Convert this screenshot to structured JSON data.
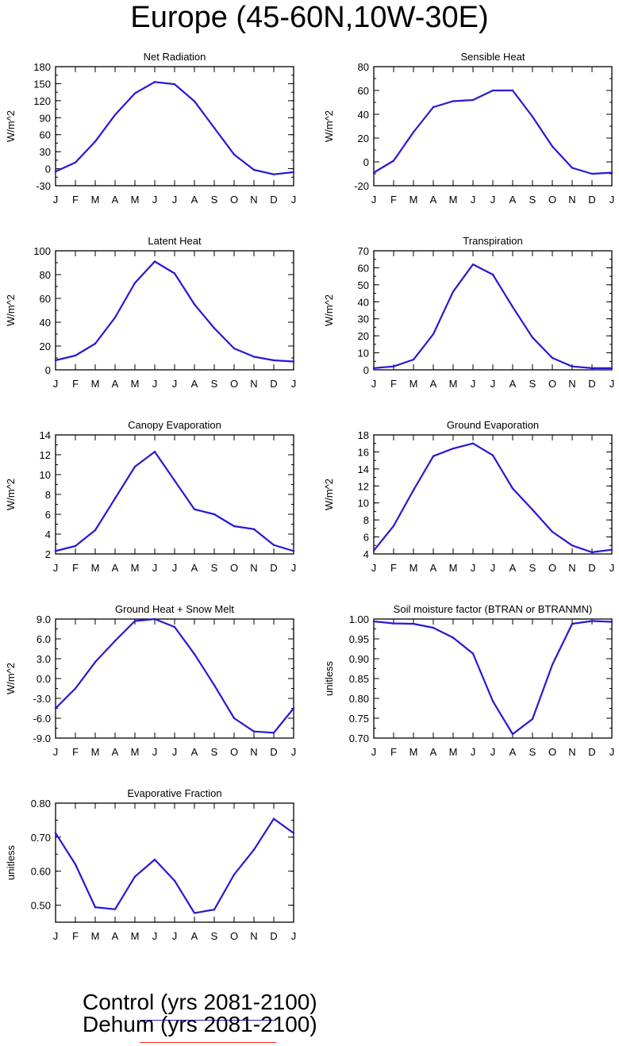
{
  "figure": {
    "title": "Europe (45-60N,10W-30E)",
    "colors": {
      "control": "#2a17d6",
      "dehum": "#ff2a1f",
      "axis": "#000000"
    }
  },
  "legend": {
    "control_label": "Control (yrs 2081-2100)",
    "dehum_label": "Dehum (yrs 2081-2100)"
  },
  "chart_data": [
    {
      "type": "line",
      "title": "Net Radiation",
      "ylabel": "W/m^2",
      "xlabel": "",
      "categories": [
        "J",
        "F",
        "M",
        "A",
        "M",
        "J",
        "J",
        "A",
        "S",
        "O",
        "N",
        "D",
        "J"
      ],
      "ylim": [
        -30,
        180
      ],
      "yticks": [
        -30,
        0,
        30,
        60,
        90,
        120,
        150,
        180
      ],
      "ytick_labels": [
        "-30",
        "0",
        "30",
        "60",
        "90",
        "120",
        "150",
        "180"
      ],
      "series": [
        {
          "name": "Control (yrs 2081-2100)",
          "values": [
            -5,
            11,
            48,
            95,
            133,
            153,
            149,
            119,
            72,
            25,
            -2,
            -10,
            -6
          ]
        }
      ]
    },
    {
      "type": "line",
      "title": "Sensible Heat",
      "ylabel": "W/m^2",
      "xlabel": "",
      "categories": [
        "J",
        "F",
        "M",
        "A",
        "M",
        "J",
        "J",
        "A",
        "S",
        "O",
        "N",
        "D",
        "J"
      ],
      "ylim": [
        -20,
        80
      ],
      "yticks": [
        -20,
        0,
        20,
        40,
        60,
        80
      ],
      "ytick_labels": [
        "-20",
        "0",
        "20",
        "40",
        "60",
        "80"
      ],
      "series": [
        {
          "name": "Control (yrs 2081-2100)",
          "values": [
            -9,
            1,
            25,
            46,
            51,
            52,
            60,
            60,
            38,
            13,
            -5,
            -10,
            -9
          ]
        }
      ]
    },
    {
      "type": "line",
      "title": "Latent Heat",
      "ylabel": "W/m^2",
      "xlabel": "",
      "categories": [
        "J",
        "F",
        "M",
        "A",
        "M",
        "J",
        "J",
        "A",
        "S",
        "O",
        "N",
        "D",
        "J"
      ],
      "ylim": [
        0,
        100
      ],
      "yticks": [
        0,
        20,
        40,
        60,
        80,
        100
      ],
      "ytick_labels": [
        "0",
        "20",
        "40",
        "60",
        "80",
        "100"
      ],
      "series": [
        {
          "name": "Control (yrs 2081-2100)",
          "values": [
            8,
            12,
            22,
            44,
            73,
            91,
            81,
            55,
            35,
            18,
            11,
            8,
            7
          ]
        }
      ]
    },
    {
      "type": "line",
      "title": "Transpiration",
      "ylabel": "W/m^2",
      "xlabel": "",
      "categories": [
        "J",
        "F",
        "M",
        "A",
        "M",
        "J",
        "J",
        "A",
        "S",
        "O",
        "N",
        "D",
        "J"
      ],
      "ylim": [
        0,
        70
      ],
      "yticks": [
        0,
        10,
        20,
        30,
        40,
        50,
        60,
        70
      ],
      "ytick_labels": [
        "0",
        "10",
        "20",
        "30",
        "40",
        "50",
        "60",
        "70"
      ],
      "series": [
        {
          "name": "Control (yrs 2081-2100)",
          "values": [
            1,
            2,
            6,
            21,
            46,
            62,
            56,
            37,
            19,
            7,
            2,
            1,
            1
          ]
        }
      ]
    },
    {
      "type": "line",
      "title": "Canopy Evaporation",
      "ylabel": "W/m^2",
      "xlabel": "",
      "categories": [
        "J",
        "F",
        "M",
        "A",
        "M",
        "J",
        "J",
        "A",
        "S",
        "O",
        "N",
        "D",
        "J"
      ],
      "ylim": [
        2,
        14
      ],
      "yticks": [
        2,
        4,
        6,
        8,
        10,
        12,
        14
      ],
      "ytick_labels": [
        "2",
        "4",
        "6",
        "8",
        "10",
        "12",
        "14"
      ],
      "series": [
        {
          "name": "Control (yrs 2081-2100)",
          "values": [
            2.3,
            2.8,
            4.4,
            7.6,
            10.8,
            12.3,
            9.4,
            6.5,
            6.0,
            4.8,
            4.5,
            2.9,
            2.3
          ]
        }
      ]
    },
    {
      "type": "line",
      "title": "Ground Evaporation",
      "ylabel": "W/m^2",
      "xlabel": "",
      "categories": [
        "J",
        "F",
        "M",
        "A",
        "M",
        "J",
        "J",
        "A",
        "S",
        "O",
        "N",
        "D",
        "J"
      ],
      "ylim": [
        4,
        18
      ],
      "yticks": [
        4,
        6,
        8,
        10,
        12,
        14,
        16,
        18
      ],
      "ytick_labels": [
        "4",
        "6",
        "8",
        "10",
        "12",
        "14",
        "16",
        "18"
      ],
      "series": [
        {
          "name": "Control (yrs 2081-2100)",
          "values": [
            4.4,
            7.3,
            11.5,
            15.5,
            16.4,
            17.0,
            15.6,
            11.7,
            9.2,
            6.6,
            5.0,
            4.2,
            4.5
          ]
        }
      ]
    },
    {
      "type": "line",
      "title": "Ground Heat + Snow Melt",
      "ylabel": "W/m^2",
      "xlabel": "",
      "categories": [
        "J",
        "F",
        "M",
        "A",
        "M",
        "J",
        "J",
        "A",
        "S",
        "O",
        "N",
        "D",
        "J"
      ],
      "ylim": [
        -9,
        9
      ],
      "yticks": [
        -9,
        -6,
        -3,
        0,
        3,
        6,
        9
      ],
      "ytick_labels": [
        "-9.0",
        "-6.0",
        "-3.0",
        "0.0",
        "3.0",
        "6.0",
        "9.0"
      ],
      "series": [
        {
          "name": "Control (yrs 2081-2100)",
          "values": [
            -4.5,
            -1.5,
            2.5,
            5.7,
            8.7,
            9.0,
            7.8,
            3.7,
            -1.0,
            -6.0,
            -8.0,
            -8.2,
            -4.5
          ]
        }
      ]
    },
    {
      "type": "line",
      "title": "Soil moisture factor (BTRAN or BTRANMN)",
      "ylabel": "unitless",
      "xlabel": "",
      "categories": [
        "J",
        "F",
        "M",
        "A",
        "M",
        "J",
        "J",
        "A",
        "S",
        "O",
        "N",
        "D",
        "J"
      ],
      "ylim": [
        0.7,
        1.0
      ],
      "yticks": [
        0.7,
        0.75,
        0.8,
        0.85,
        0.9,
        0.95,
        1.0
      ],
      "ytick_labels": [
        "0.70",
        "0.75",
        "0.80",
        "0.85",
        "0.90",
        "0.95",
        "1.00"
      ],
      "series": [
        {
          "name": "Control (yrs 2081-2100)",
          "values": [
            0.994,
            0.989,
            0.988,
            0.978,
            0.953,
            0.913,
            0.793,
            0.71,
            0.748,
            0.885,
            0.988,
            0.995,
            0.993
          ]
        }
      ]
    },
    {
      "type": "line",
      "title": "Evaporative Fraction",
      "ylabel": "unitless",
      "xlabel": "",
      "categories": [
        "J",
        "F",
        "M",
        "A",
        "M",
        "J",
        "J",
        "A",
        "S",
        "O",
        "N",
        "D",
        "J"
      ],
      "ylim": [
        0.45,
        0.8
      ],
      "yticks": [
        0.5,
        0.6,
        0.7,
        0.8
      ],
      "ytick_labels": [
        "0.50",
        "0.60",
        "0.70",
        "0.80"
      ],
      "series": [
        {
          "name": "Control (yrs 2081-2100)",
          "values": [
            0.712,
            0.62,
            0.494,
            0.488,
            0.584,
            0.634,
            0.572,
            0.477,
            0.487,
            0.59,
            0.663,
            0.754,
            0.712
          ]
        }
      ]
    }
  ]
}
